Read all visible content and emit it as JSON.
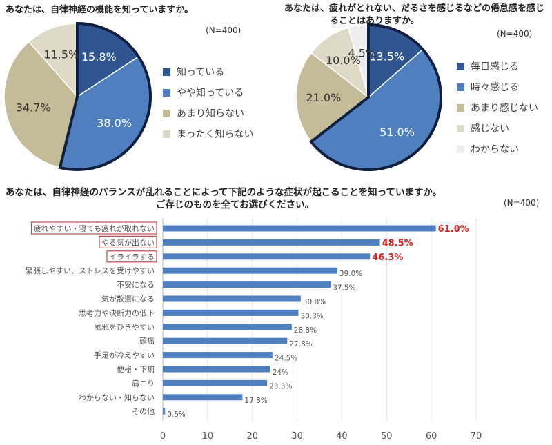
{
  "chart_data": [
    {
      "type": "pie",
      "title": "あなたは、自律神経の機能を知っていますか。",
      "note": "(N=400)",
      "categories": [
        "知っている",
        "やや知っている",
        "あまり知らない",
        "まったく知らない"
      ],
      "values": [
        15.8,
        38.0,
        34.7,
        11.5
      ],
      "value_labels": [
        "15.8%",
        "38.0%",
        "34.7%",
        "11.5%"
      ],
      "colors": [
        "#2f5690",
        "#4f7fbf",
        "#c4bb98",
        "#ddd9c6"
      ],
      "highlighted": [
        true,
        true,
        false,
        false
      ],
      "legend_position": "right"
    },
    {
      "type": "pie",
      "title_lines": [
        "あなたは、疲れがとれない、だるさを感じるなどの倦怠感を感じ",
        "ることはありますか。"
      ],
      "note": "(N=400)",
      "categories": [
        "毎日感じる",
        "時々感じる",
        "あまり感じない",
        "感じない",
        "わからない"
      ],
      "values": [
        13.5,
        51.0,
        21.0,
        10.0,
        4.5
      ],
      "value_labels": [
        "13.5%",
        "51.0%",
        "21.0%",
        "10.0%",
        "4.5%"
      ],
      "colors": [
        "#2f5690",
        "#4f7fbf",
        "#c4bb98",
        "#ddd9c6",
        "#eeeeee"
      ],
      "highlighted": [
        true,
        true,
        false,
        false,
        false
      ],
      "legend_position": "right"
    },
    {
      "type": "bar",
      "orientation": "horizontal",
      "title_lines": [
        "あなたは、自律神経のバランスが乱れることによって下記のような症状が起こることを知っていますか。",
        "ご存じのものを全てお選びください。"
      ],
      "note": "(N=400)",
      "categories": [
        "疲れやすい・寝ても疲れが取れない",
        "やる気が出ない",
        "イライラする",
        "緊張しやすい、ストレスを受けやすい",
        "不安になる",
        "気が散漫になる",
        "思考力や決断力の低下",
        "風邪をひきやすい",
        "頭痛",
        "手足が冷えやすい",
        "便秘・下痢",
        "肩こり",
        "わからない・知らない",
        "その他"
      ],
      "values": [
        61.0,
        48.5,
        46.3,
        39.0,
        37.5,
        30.8,
        30.3,
        28.8,
        27.8,
        24.5,
        24,
        23.3,
        17.8,
        0.5
      ],
      "value_labels": [
        "61.0%",
        "48.5%",
        "46.3%",
        "39.0%",
        "37.5%",
        "30.8%",
        "30.3%",
        "28.8%",
        "27.8%",
        "24.5%",
        "24%",
        "23.3%",
        "17.8%",
        "0.5%"
      ],
      "highlighted": [
        true,
        true,
        true,
        false,
        false,
        false,
        false,
        false,
        false,
        false,
        false,
        false,
        false,
        false
      ],
      "xlim": [
        0,
        70
      ],
      "xticks": [
        "0",
        "10",
        "20",
        "30",
        "40",
        "50",
        "60",
        "70"
      ],
      "grid": "vertical",
      "bar_color": "#4f7fbf",
      "highlight_text_color": "#e02020",
      "highlight_box_color": "#c0504d"
    }
  ]
}
